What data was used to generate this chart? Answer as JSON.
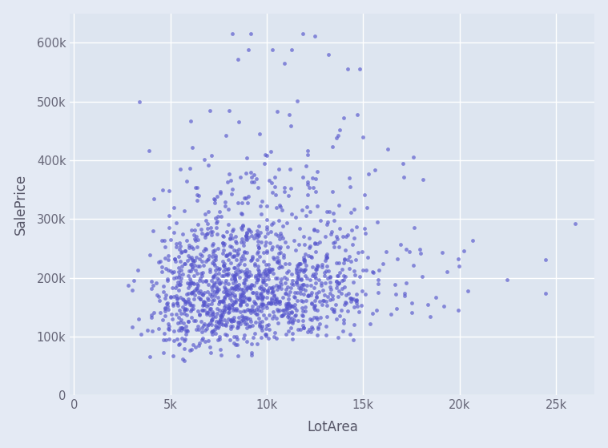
{
  "title": "",
  "xlabel": "LotArea",
  "ylabel": "SalePrice",
  "xlim": [
    -200,
    27000
  ],
  "ylim": [
    0,
    650000
  ],
  "xticks": [
    0,
    5000,
    10000,
    15000,
    20000,
    25000
  ],
  "yticks": [
    0,
    100000,
    200000,
    300000,
    400000,
    500000,
    600000
  ],
  "dot_color": "#5555cc",
  "dot_alpha": 0.65,
  "dot_size": 12,
  "axes_bg_color": "#dde5f0",
  "fig_bg_color": "#e4eaf4",
  "grid_color": "#ffffff",
  "grid_linewidth": 1.0,
  "random_seed": 7
}
